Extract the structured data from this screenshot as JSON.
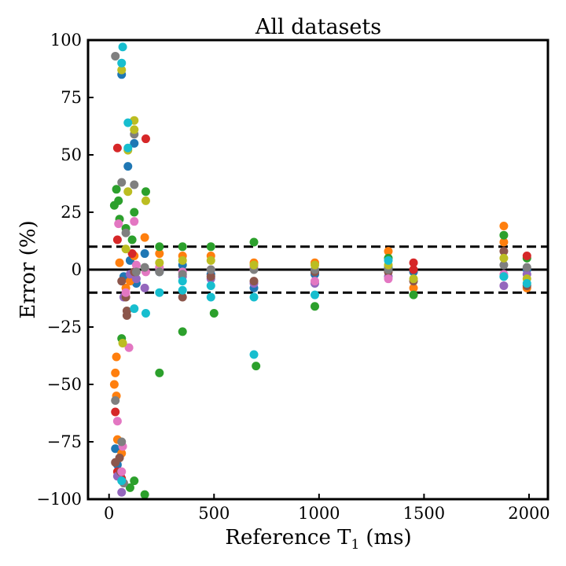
{
  "chart_data": {
    "type": "scatter",
    "title": "All datasets",
    "xlabel": "Reference T",
    "xlabel_subscript": "1",
    "xlabel_unit": "(ms)",
    "ylabel": "Error (%)",
    "xlim": [
      -100,
      2090
    ],
    "ylim": [
      -100,
      100
    ],
    "xticks": [
      0,
      500,
      1000,
      1500,
      2000
    ],
    "yticks": [
      100,
      75,
      50,
      25,
      0,
      -25,
      -50,
      -75,
      -100
    ],
    "xtick_labels": [
      "0",
      "500",
      "1000",
      "1500",
      "2000"
    ],
    "ytick_labels": [
      "100",
      "75",
      "50",
      "25",
      "0",
      "−25",
      "−50",
      "−75",
      "−100"
    ],
    "grid": false,
    "reference_lines": [
      {
        "y": 0,
        "style": "solid"
      },
      {
        "y": 10,
        "style": "dashed"
      },
      {
        "y": -10,
        "style": "dashed"
      }
    ],
    "colors": [
      "#1f77b4",
      "#ff7f0e",
      "#2ca02c",
      "#d62728",
      "#9467bd",
      "#8c564b",
      "#e377c2",
      "#7f7f7f",
      "#bcbd22",
      "#17becf"
    ],
    "series": [
      {
        "color": "#1f77b4",
        "points": [
          [
            60,
            85
          ],
          [
            90,
            45
          ],
          [
            120,
            55
          ],
          [
            30,
            -78
          ],
          [
            40,
            -85
          ],
          [
            55,
            -90
          ],
          [
            70,
            -3
          ],
          [
            100,
            4
          ],
          [
            130,
            -6
          ],
          [
            170,
            7
          ],
          [
            240,
            -1
          ],
          [
            350,
            2
          ],
          [
            485,
            -2
          ],
          [
            690,
            -8
          ],
          [
            980,
            -2
          ],
          [
            1330,
            1
          ],
          [
            1450,
            -1
          ],
          [
            1880,
            -3
          ],
          [
            1990,
            0
          ]
        ]
      },
      {
        "color": "#ff7f0e",
        "points": [
          [
            30,
            -45
          ],
          [
            25,
            -50
          ],
          [
            35,
            -38
          ],
          [
            40,
            -74
          ],
          [
            35,
            -55
          ],
          [
            60,
            -80
          ],
          [
            50,
            3
          ],
          [
            80,
            -8
          ],
          [
            100,
            -5
          ],
          [
            120,
            6
          ],
          [
            170,
            14
          ],
          [
            240,
            7
          ],
          [
            350,
            6
          ],
          [
            485,
            6
          ],
          [
            690,
            3
          ],
          [
            980,
            3
          ],
          [
            1330,
            8
          ],
          [
            1450,
            -8
          ],
          [
            1880,
            19
          ],
          [
            1880,
            12
          ],
          [
            1990,
            -8
          ]
        ]
      },
      {
        "color": "#2ca02c",
        "points": [
          [
            25,
            28
          ],
          [
            35,
            35
          ],
          [
            45,
            30
          ],
          [
            50,
            22
          ],
          [
            60,
            -30
          ],
          [
            80,
            18
          ],
          [
            110,
            13
          ],
          [
            120,
            25
          ],
          [
            175,
            34
          ],
          [
            240,
            10
          ],
          [
            350,
            10
          ],
          [
            485,
            10
          ],
          [
            690,
            12
          ],
          [
            240,
            -45
          ],
          [
            350,
            -27
          ],
          [
            500,
            -19
          ],
          [
            700,
            -42
          ],
          [
            980,
            -16
          ],
          [
            1330,
            5
          ],
          [
            1450,
            -11
          ],
          [
            1880,
            15
          ],
          [
            1990,
            5
          ],
          [
            120,
            -92
          ],
          [
            170,
            -98
          ],
          [
            100,
            -95
          ]
        ]
      },
      {
        "color": "#d62728",
        "points": [
          [
            40,
            53
          ],
          [
            175,
            57
          ],
          [
            40,
            13
          ],
          [
            30,
            -62
          ],
          [
            40,
            -88
          ],
          [
            60,
            -91
          ],
          [
            110,
            7
          ],
          [
            1450,
            3
          ],
          [
            1450,
            0
          ],
          [
            1990,
            6
          ]
        ]
      },
      {
        "color": "#9467bd",
        "points": [
          [
            60,
            -97
          ],
          [
            40,
            -90
          ],
          [
            70,
            -12
          ],
          [
            100,
            -2
          ],
          [
            130,
            -4
          ],
          [
            170,
            -8
          ],
          [
            240,
            0
          ],
          [
            350,
            -3
          ],
          [
            485,
            -4
          ],
          [
            690,
            -6
          ],
          [
            980,
            -6
          ],
          [
            1330,
            -3
          ],
          [
            1880,
            -7
          ],
          [
            1990,
            -2
          ]
        ]
      },
      {
        "color": "#8c564b",
        "points": [
          [
            60,
            -5
          ],
          [
            80,
            -12
          ],
          [
            85,
            -18
          ],
          [
            85,
            -20
          ],
          [
            50,
            -82
          ],
          [
            55,
            -88
          ],
          [
            30,
            -84
          ],
          [
            120,
            -1
          ],
          [
            350,
            -12
          ],
          [
            485,
            -3
          ],
          [
            690,
            -5
          ],
          [
            980,
            -1
          ],
          [
            1330,
            -1
          ],
          [
            1450,
            -5
          ],
          [
            1880,
            8
          ],
          [
            1990,
            -7
          ]
        ]
      },
      {
        "color": "#e377c2",
        "points": [
          [
            45,
            20
          ],
          [
            95,
            -34
          ],
          [
            120,
            21
          ],
          [
            40,
            -66
          ],
          [
            65,
            -77
          ],
          [
            60,
            -88
          ],
          [
            80,
            -10
          ],
          [
            130,
            2
          ],
          [
            175,
            -1
          ],
          [
            240,
            1
          ],
          [
            350,
            -1
          ],
          [
            485,
            0
          ],
          [
            690,
            1
          ],
          [
            980,
            -5
          ],
          [
            1330,
            -4
          ],
          [
            1880,
            -2
          ]
        ]
      },
      {
        "color": "#7f7f7f",
        "points": [
          [
            30,
            93
          ],
          [
            60,
            38
          ],
          [
            80,
            16
          ],
          [
            120,
            37
          ],
          [
            120,
            59
          ],
          [
            30,
            -57
          ],
          [
            60,
            -75
          ],
          [
            70,
            -93
          ],
          [
            130,
            -1
          ],
          [
            170,
            1
          ],
          [
            240,
            -1
          ],
          [
            350,
            -2
          ],
          [
            485,
            0
          ],
          [
            690,
            0
          ],
          [
            980,
            0
          ],
          [
            1330,
            0
          ],
          [
            1880,
            2
          ],
          [
            1990,
            1
          ]
        ]
      },
      {
        "color": "#bcbd22",
        "points": [
          [
            60,
            87
          ],
          [
            120,
            65
          ],
          [
            120,
            61
          ],
          [
            90,
            52
          ],
          [
            90,
            34
          ],
          [
            65,
            -32
          ],
          [
            80,
            9
          ],
          [
            175,
            30
          ],
          [
            240,
            3
          ],
          [
            350,
            4
          ],
          [
            485,
            4
          ],
          [
            690,
            2
          ],
          [
            980,
            2
          ],
          [
            1330,
            2
          ],
          [
            1450,
            -4
          ],
          [
            1880,
            5
          ],
          [
            1990,
            -4
          ]
        ]
      },
      {
        "color": "#17becf",
        "points": [
          [
            65,
            97
          ],
          [
            60,
            90
          ],
          [
            90,
            64
          ],
          [
            90,
            53
          ],
          [
            120,
            -17
          ],
          [
            175,
            -19
          ],
          [
            240,
            -10
          ],
          [
            350,
            -9
          ],
          [
            350,
            -5
          ],
          [
            485,
            -7
          ],
          [
            485,
            -12
          ],
          [
            690,
            -12
          ],
          [
            690,
            -37
          ],
          [
            980,
            -11
          ],
          [
            1330,
            4
          ],
          [
            1880,
            -3
          ],
          [
            1990,
            -6
          ],
          [
            60,
            -92
          ]
        ]
      }
    ]
  }
}
